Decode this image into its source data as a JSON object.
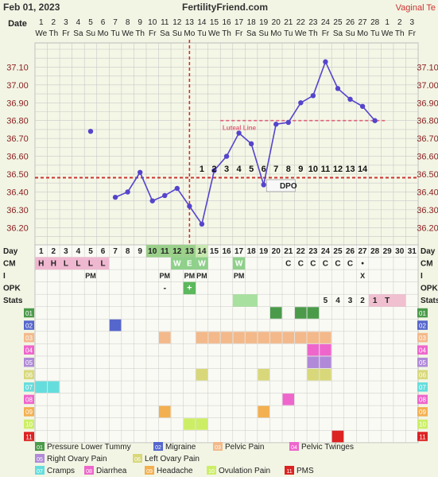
{
  "header": {
    "date": "Feb 01, 2023",
    "site": "FertilityFriend.com",
    "right_label": "Vaginal Te"
  },
  "chart_data": {
    "type": "line",
    "title": "",
    "row_label_date": "Date",
    "row_label_day": "Day",
    "dates": [
      "1",
      "2",
      "3",
      "4",
      "5",
      "6",
      "7",
      "8",
      "9",
      "10",
      "11",
      "12",
      "13",
      "14",
      "15",
      "16",
      "17",
      "18",
      "19",
      "20",
      "21",
      "22",
      "23",
      "24",
      "25",
      "26",
      "27",
      "28",
      "1",
      "2",
      "3"
    ],
    "weekdays": [
      "We",
      "Th",
      "Fr",
      "Sa",
      "Su",
      "Mo",
      "Tu",
      "We",
      "Th",
      "Fr",
      "Sa",
      "Su",
      "Mo",
      "Tu",
      "We",
      "Th",
      "Fr",
      "Sa",
      "Su",
      "Mo",
      "Tu",
      "We",
      "Th",
      "Fr",
      "Sa",
      "Su",
      "Mo",
      "Tu",
      "We",
      "Th",
      "Fr"
    ],
    "x_days": [
      1,
      2,
      3,
      4,
      5,
      6,
      7,
      8,
      9,
      10,
      11,
      12,
      13,
      14,
      15,
      16,
      17,
      18,
      19,
      20,
      21,
      22,
      23,
      24,
      25,
      26,
      27,
      28,
      29,
      30,
      31
    ],
    "temps": [
      null,
      null,
      null,
      null,
      36.74,
      null,
      36.37,
      36.4,
      36.51,
      36.35,
      36.38,
      36.42,
      36.32,
      36.22,
      36.52,
      36.6,
      36.73,
      36.67,
      36.44,
      36.78,
      36.79,
      36.9,
      36.94,
      37.13,
      36.98,
      36.92,
      36.88,
      36.8,
      null,
      null,
      null
    ],
    "ylim": [
      36.13,
      37.2
    ],
    "y_ticks": [
      "36.20",
      "36.30",
      "36.40",
      "36.50",
      "36.60",
      "36.70",
      "36.80",
      "36.90",
      "37.00",
      "37.10"
    ],
    "coverline": 36.48,
    "ovulation_day": 13,
    "luteal_line_label": "Luteal Line",
    "luteal_line_value": 36.8,
    "luteal_line_days": [
      16,
      29
    ],
    "dpo_label": "DPO",
    "dpo_numbers": [
      "1",
      "2",
      "3",
      "4",
      "5",
      "6",
      "7",
      "8",
      "9",
      "10",
      "11",
      "12",
      "13",
      "14"
    ],
    "grid": true,
    "colors": {
      "line": "#5544cc",
      "coverline": "#cc3333",
      "luteal": "#e0607a",
      "axis_text": "#8a2020"
    }
  },
  "rows": {
    "labels": [
      "Day",
      "CM",
      "I",
      "OPK",
      "Stats"
    ],
    "cm": [
      "H",
      "H",
      "L",
      "L",
      "L",
      "L",
      "",
      "",
      "",
      "",
      "",
      "W",
      "E",
      "W",
      "",
      "",
      "W",
      "",
      "",
      "",
      "C",
      "C",
      "C",
      "C",
      "C",
      "C",
      "•",
      "",
      "",
      "",
      ""
    ],
    "intercourse": [
      "",
      "",
      "",
      "",
      "PM",
      "",
      "",
      "",
      "",
      "",
      "PM",
      "",
      "PM",
      "PM",
      "",
      "",
      "PM",
      "",
      "",
      "",
      "",
      "",
      "",
      "",
      "",
      "",
      "X",
      "",
      "",
      "",
      ""
    ],
    "opk": [
      "",
      "",
      "",
      "",
      "",
      "",
      "",
      "",
      "",
      "",
      "-",
      "",
      "+",
      "",
      "",
      "",
      "",
      "",
      "",
      "",
      "",
      "",
      "",
      "",
      "",
      "",
      "",
      "",
      "",
      "",
      ""
    ],
    "stats": [
      "",
      "",
      "",
      "",
      "",
      "",
      "",
      "",
      "",
      "",
      "",
      "",
      "",
      "",
      "",
      "",
      "",
      "",
      "",
      "",
      "",
      "",
      "",
      "5",
      "4",
      "3",
      "2",
      "1",
      "T",
      "",
      ""
    ],
    "symptom_rows": [
      "01",
      "02",
      "03",
      "04",
      "05",
      "06",
      "07",
      "08",
      "09",
      "10",
      "11"
    ]
  },
  "legend": {
    "items": [
      {
        "num": "01",
        "label": "Pressure Lower Tummy",
        "color": "#4a9a4a"
      },
      {
        "num": "02",
        "label": "Migraine",
        "color": "#5566cc"
      },
      {
        "num": "03",
        "label": "Pelvic Pain",
        "color": "#f3b98a"
      },
      {
        "num": "04",
        "label": "Pelvic Twinges",
        "color": "#ee66cc"
      },
      {
        "num": "05",
        "label": "Right Ovary Pain",
        "color": "#b08ad8"
      },
      {
        "num": "06",
        "label": "Left Ovary Pain",
        "color": "#d8d87a"
      },
      {
        "num": "07",
        "label": "Cramps",
        "color": "#66dddd"
      },
      {
        "num": "08",
        "label": "Diarrhea",
        "color": "#ee66cc"
      },
      {
        "num": "09",
        "label": "Headache",
        "color": "#f3b050"
      },
      {
        "num": "10",
        "label": "Ovulation Pain",
        "color": "#ccee66"
      },
      {
        "num": "11",
        "label": "PMS",
        "color": "#dd2222"
      }
    ]
  }
}
